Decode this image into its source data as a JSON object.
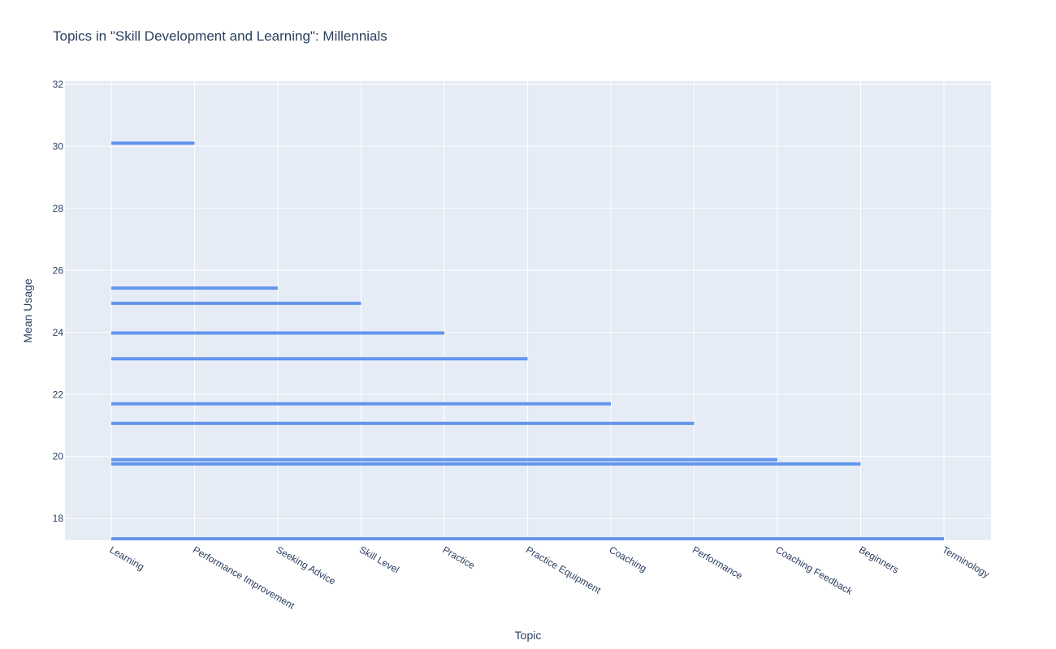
{
  "chart_data": {
    "type": "line",
    "title": "Topics in \"Skill Development and Learning\": Millennials",
    "xlabel": "Topic",
    "ylabel": "Mean Usage",
    "categories": [
      "Learning",
      "Performance Improvement",
      "Seeking Advice",
      "Skill Level",
      "Practice",
      "Practice Equipment",
      "Coaching",
      "Performance",
      "Coaching Feedback",
      "Beginners",
      "Terminology"
    ],
    "y_ticks": [
      18,
      20,
      22,
      24,
      26,
      28,
      30,
      32
    ],
    "ylim": [
      17.3,
      32.1
    ],
    "grid": true,
    "colors": {
      "line": "#6495ed",
      "plot_bg": "#e5ecf6",
      "grid": "#ffffff",
      "text": "#2a3f5f"
    },
    "segments": [
      {
        "x_start": "Learning",
        "x_end": "Performance Improvement",
        "y": 30.1
      },
      {
        "x_start": "Learning",
        "x_end": "Seeking Advice",
        "y": 25.43
      },
      {
        "x_start": "Learning",
        "x_end": "Skill Level",
        "y": 24.94
      },
      {
        "x_start": "Learning",
        "x_end": "Practice",
        "y": 23.98
      },
      {
        "x_start": "Learning",
        "x_end": "Practice Equipment",
        "y": 23.15
      },
      {
        "x_start": "Learning",
        "x_end": "Coaching",
        "y": 21.7
      },
      {
        "x_start": "Learning",
        "x_end": "Performance",
        "y": 21.07
      },
      {
        "x_start": "Learning",
        "x_end": "Coaching Feedback",
        "y": 19.9
      },
      {
        "x_start": "Learning",
        "x_end": "Beginners",
        "y": 19.76
      },
      {
        "x_start": "Learning",
        "x_end": "Terminology",
        "y": 17.35
      }
    ]
  }
}
